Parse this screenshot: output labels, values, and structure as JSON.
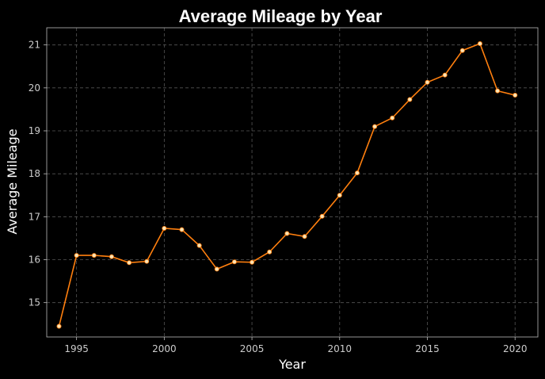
{
  "chart_data": {
    "type": "line",
    "title": "Average Mileage by Year",
    "xlabel": "Year",
    "ylabel": "Average Mileage",
    "xlim": [
      1993.3,
      2021.3
    ],
    "ylim": [
      14.2,
      21.4
    ],
    "xticks": [
      1995,
      2000,
      2005,
      2010,
      2015,
      2020
    ],
    "yticks": [
      15,
      16,
      17,
      18,
      19,
      20,
      21
    ],
    "grid": true,
    "line_color": "#ff7f0e",
    "marker_color": "#ffe4b5",
    "background": "#000000",
    "series": [
      {
        "x": [
          1994,
          1995,
          1996,
          1997,
          1998,
          1999,
          2000,
          2001,
          2002,
          2003,
          2004,
          2005,
          2006,
          2007,
          2008,
          2009,
          2010,
          2011,
          2012,
          2013,
          2014,
          2015,
          2016,
          2017,
          2018,
          2019,
          2020
        ],
        "y": [
          14.45,
          16.1,
          16.1,
          16.07,
          15.93,
          15.96,
          16.73,
          16.7,
          16.33,
          15.78,
          15.95,
          15.94,
          16.18,
          16.61,
          16.54,
          17.01,
          17.5,
          18.02,
          19.1,
          19.3,
          19.73,
          20.13,
          20.3,
          20.87,
          21.03,
          19.93,
          19.83
        ]
      }
    ]
  }
}
